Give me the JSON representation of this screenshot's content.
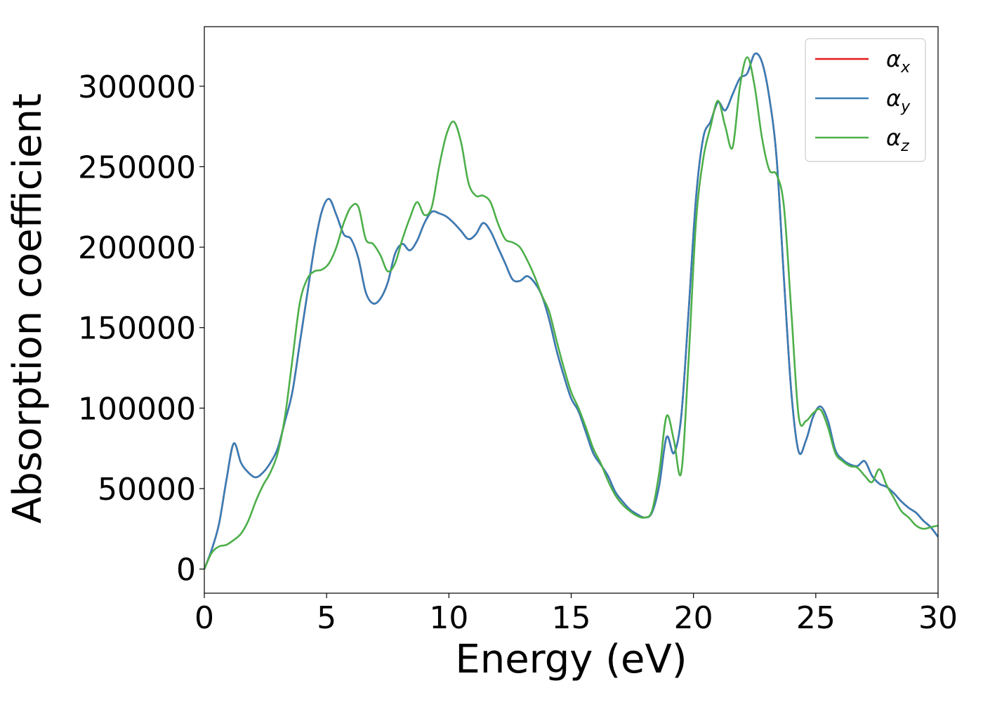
{
  "chart_data": {
    "type": "line",
    "title": "",
    "xlabel": "Energy (eV)",
    "ylabel": "Absorption coefficient",
    "xlim": [
      0,
      30
    ],
    "ylim": [
      -15000,
      337000
    ],
    "xticks": [
      0,
      5,
      10,
      15,
      20,
      25,
      30
    ],
    "yticks": [
      0,
      50000,
      100000,
      150000,
      200000,
      250000,
      300000
    ],
    "grid": false,
    "legend_position": "top-right",
    "series": [
      {
        "name": "αx",
        "name_base": "α",
        "name_sub": "x",
        "color": "#e41a1c",
        "x": [
          0,
          0.3,
          0.6,
          0.9,
          1.2,
          1.5,
          1.8,
          2.1,
          2.4,
          2.7,
          3.0,
          3.3,
          3.6,
          3.9,
          4.2,
          4.5,
          4.8,
          5.1,
          5.4,
          5.7,
          6.0,
          6.3,
          6.6,
          6.9,
          7.2,
          7.5,
          7.8,
          8.1,
          8.4,
          8.7,
          9.0,
          9.3,
          9.6,
          9.9,
          10.2,
          10.5,
          10.8,
          11.1,
          11.4,
          11.7,
          12.0,
          12.3,
          12.6,
          12.9,
          13.2,
          13.5,
          13.8,
          14.1,
          14.4,
          14.7,
          15.0,
          15.3,
          15.6,
          15.9,
          16.2,
          16.5,
          16.8,
          17.1,
          17.4,
          17.7,
          18.0,
          18.3,
          18.6,
          18.9,
          19.2,
          19.5,
          19.8,
          20.1,
          20.4,
          20.7,
          21.0,
          21.3,
          21.6,
          21.9,
          22.2,
          22.5,
          22.8,
          23.1,
          23.4,
          23.7,
          24.0,
          24.3,
          24.6,
          24.9,
          25.2,
          25.5,
          25.8,
          26.1,
          26.4,
          26.7,
          27.0,
          27.3,
          27.6,
          27.9,
          28.2,
          28.5,
          28.8,
          29.1,
          29.4,
          29.7,
          30.0
        ],
        "y": [
          0,
          12000,
          28000,
          55000,
          78000,
          66000,
          60000,
          57000,
          60000,
          66000,
          75000,
          92000,
          110000,
          140000,
          170000,
          200000,
          222000,
          230000,
          220000,
          208000,
          205000,
          193000,
          172000,
          165000,
          168000,
          178000,
          196000,
          202000,
          198000,
          204000,
          215000,
          222000,
          221000,
          219000,
          215000,
          210000,
          205000,
          208000,
          215000,
          210000,
          200000,
          190000,
          180000,
          179000,
          182000,
          178000,
          170000,
          155000,
          136000,
          120000,
          106000,
          98000,
          85000,
          72000,
          65000,
          58000,
          48000,
          42000,
          37000,
          34000,
          32000,
          35000,
          52000,
          82000,
          72000,
          95000,
          160000,
          230000,
          268000,
          278000,
          290000,
          285000,
          295000,
          305000,
          308000,
          320000,
          315000,
          293000,
          255000,
          180000,
          110000,
          73000,
          80000,
          95000,
          101000,
          92000,
          74000,
          68000,
          65000,
          64000,
          67000,
          58000,
          53000,
          51000,
          47000,
          42000,
          38000,
          35000,
          30000,
          26000,
          20000
        ]
      },
      {
        "name": "αy",
        "name_base": "α",
        "name_sub": "y",
        "color": "#377eb8",
        "x": [
          0,
          0.3,
          0.6,
          0.9,
          1.2,
          1.5,
          1.8,
          2.1,
          2.4,
          2.7,
          3.0,
          3.3,
          3.6,
          3.9,
          4.2,
          4.5,
          4.8,
          5.1,
          5.4,
          5.7,
          6.0,
          6.3,
          6.6,
          6.9,
          7.2,
          7.5,
          7.8,
          8.1,
          8.4,
          8.7,
          9.0,
          9.3,
          9.6,
          9.9,
          10.2,
          10.5,
          10.8,
          11.1,
          11.4,
          11.7,
          12.0,
          12.3,
          12.6,
          12.9,
          13.2,
          13.5,
          13.8,
          14.1,
          14.4,
          14.7,
          15.0,
          15.3,
          15.6,
          15.9,
          16.2,
          16.5,
          16.8,
          17.1,
          17.4,
          17.7,
          18.0,
          18.3,
          18.6,
          18.9,
          19.2,
          19.5,
          19.8,
          20.1,
          20.4,
          20.7,
          21.0,
          21.3,
          21.6,
          21.9,
          22.2,
          22.5,
          22.8,
          23.1,
          23.4,
          23.7,
          24.0,
          24.3,
          24.6,
          24.9,
          25.2,
          25.5,
          25.8,
          26.1,
          26.4,
          26.7,
          27.0,
          27.3,
          27.6,
          27.9,
          28.2,
          28.5,
          28.8,
          29.1,
          29.4,
          29.7,
          30.0
        ],
        "y": [
          0,
          12000,
          28000,
          55000,
          78000,
          66000,
          60000,
          57000,
          60000,
          66000,
          75000,
          92000,
          110000,
          140000,
          170000,
          200000,
          222000,
          230000,
          220000,
          208000,
          205000,
          193000,
          172000,
          165000,
          168000,
          178000,
          196000,
          202000,
          198000,
          204000,
          215000,
          222000,
          221000,
          219000,
          215000,
          210000,
          205000,
          208000,
          215000,
          210000,
          200000,
          190000,
          180000,
          179000,
          182000,
          178000,
          170000,
          155000,
          136000,
          120000,
          106000,
          98000,
          85000,
          72000,
          65000,
          58000,
          48000,
          42000,
          37000,
          34000,
          32000,
          35000,
          52000,
          82000,
          72000,
          95000,
          160000,
          230000,
          268000,
          278000,
          290000,
          285000,
          295000,
          305000,
          308000,
          320000,
          315000,
          293000,
          255000,
          180000,
          110000,
          73000,
          80000,
          95000,
          101000,
          92000,
          74000,
          68000,
          65000,
          64000,
          67000,
          58000,
          53000,
          51000,
          47000,
          42000,
          38000,
          35000,
          30000,
          26000,
          20000
        ]
      },
      {
        "name": "αz",
        "name_base": "α",
        "name_sub": "z",
        "color": "#4daf4a",
        "x": [
          0,
          0.3,
          0.6,
          0.9,
          1.2,
          1.5,
          1.8,
          2.1,
          2.4,
          2.7,
          3.0,
          3.3,
          3.6,
          3.9,
          4.2,
          4.5,
          4.8,
          5.1,
          5.4,
          5.7,
          6.0,
          6.3,
          6.6,
          6.9,
          7.2,
          7.5,
          7.8,
          8.1,
          8.4,
          8.7,
          9.0,
          9.3,
          9.6,
          9.9,
          10.2,
          10.5,
          10.8,
          11.1,
          11.4,
          11.7,
          12.0,
          12.3,
          12.6,
          12.9,
          13.2,
          13.5,
          13.8,
          14.1,
          14.4,
          14.7,
          15.0,
          15.3,
          15.6,
          15.9,
          16.2,
          16.5,
          16.8,
          17.1,
          17.4,
          17.7,
          18.0,
          18.3,
          18.6,
          18.9,
          19.2,
          19.5,
          19.8,
          20.1,
          20.4,
          20.7,
          21.0,
          21.3,
          21.6,
          21.9,
          22.2,
          22.5,
          22.8,
          23.1,
          23.4,
          23.7,
          24.0,
          24.3,
          24.6,
          24.9,
          25.2,
          25.5,
          25.8,
          26.1,
          26.4,
          26.7,
          27.0,
          27.3,
          27.6,
          27.9,
          28.2,
          28.5,
          28.8,
          29.1,
          29.4,
          29.7,
          30.0
        ],
        "y": [
          0,
          10000,
          14000,
          15000,
          18000,
          22000,
          30000,
          42000,
          52000,
          60000,
          72000,
          95000,
          130000,
          165000,
          180000,
          185000,
          186000,
          190000,
          200000,
          215000,
          225000,
          225000,
          205000,
          202000,
          195000,
          185000,
          190000,
          205000,
          218000,
          228000,
          220000,
          225000,
          250000,
          270000,
          278000,
          265000,
          240000,
          232000,
          232000,
          228000,
          215000,
          205000,
          203000,
          200000,
          192000,
          182000,
          170000,
          160000,
          142000,
          125000,
          110000,
          100000,
          88000,
          75000,
          66000,
          55000,
          46000,
          40000,
          36000,
          33000,
          32000,
          36000,
          60000,
          95000,
          80000,
          60000,
          130000,
          215000,
          255000,
          275000,
          291000,
          275000,
          262000,
          300000,
          318000,
          300000,
          268000,
          248000,
          245000,
          225000,
          160000,
          95000,
          92000,
          97000,
          99000,
          88000,
          72000,
          67000,
          64000,
          63000,
          58000,
          54000,
          62000,
          52000,
          44000,
          36000,
          32000,
          27000,
          25000,
          26000,
          27000
        ]
      }
    ]
  }
}
